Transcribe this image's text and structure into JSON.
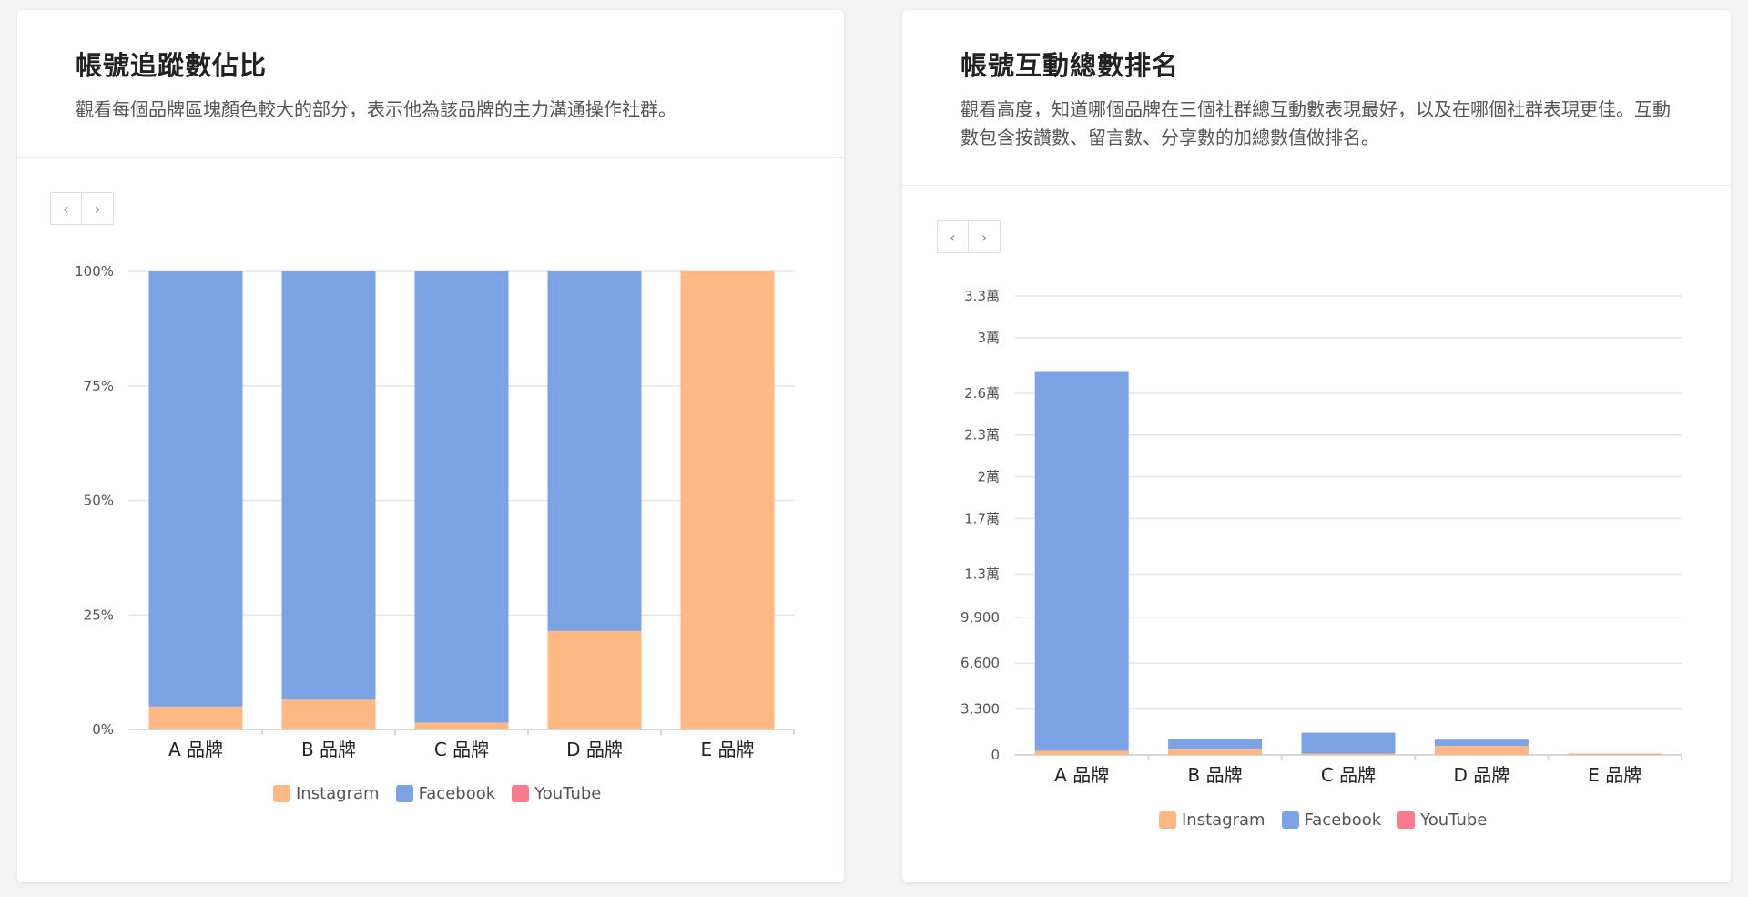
{
  "colors": {
    "instagram": "#ffb884",
    "facebook": "#7ba3e6",
    "youtube": "#fb7a8c",
    "grid": "#e6e6e6",
    "axis": "#d8d8d8"
  },
  "pager": {
    "prev_icon": "‹",
    "next_icon": "›"
  },
  "left_card": {
    "title": "帳號追蹤數佔比",
    "description": "觀看每個品牌區塊顏色較大的部分，表示他為該品牌的主力溝通操作社群。"
  },
  "right_card": {
    "title": "帳號互動總數排名",
    "description": "觀看高度，知道哪個品牌在三個社群總互動數表現最好，以及在哪個社群表現更佳。互動數包含按讚數、留言數、分享數的加總數值做排名。"
  },
  "legend": [
    "Instagram",
    "Facebook",
    "YouTube"
  ],
  "chart_data": [
    {
      "type": "bar",
      "stacked": true,
      "normalized": true,
      "categories": [
        "A 品牌",
        "B 品牌",
        "C 品牌",
        "D 品牌",
        "E 品牌"
      ],
      "series": [
        {
          "name": "Instagram",
          "values": [
            5,
            6.5,
            1.5,
            21.5,
            100
          ]
        },
        {
          "name": "Facebook",
          "values": [
            95,
            93.5,
            98.5,
            78.5,
            0
          ]
        },
        {
          "name": "YouTube",
          "values": [
            0,
            0,
            0,
            0,
            0
          ]
        }
      ],
      "ylim": [
        0,
        100
      ],
      "yticks": [
        0,
        25,
        50,
        75,
        100
      ],
      "ytick_labels": [
        "0%",
        "25%",
        "50%",
        "75%",
        "100%"
      ],
      "grid": true,
      "legend_position": "bottom"
    },
    {
      "type": "bar",
      "stacked": true,
      "categories": [
        "A 品牌",
        "B 品牌",
        "C 品牌",
        "D 品牌",
        "E 品牌"
      ],
      "series": [
        {
          "name": "Instagram",
          "values": [
            300,
            450,
            100,
            650,
            100
          ]
        },
        {
          "name": "Facebook",
          "values": [
            27300,
            680,
            1500,
            450,
            0
          ]
        },
        {
          "name": "YouTube",
          "values": [
            0,
            0,
            0,
            0,
            0
          ]
        }
      ],
      "ylim": [
        0,
        33000
      ],
      "yticks": [
        0,
        3300,
        6600,
        9900,
        13000,
        17000,
        20000,
        23000,
        26000,
        30000,
        33000
      ],
      "ytick_labels": [
        "0",
        "3,300",
        "6,600",
        "9,900",
        "1.3萬",
        "1.7萬",
        "2萬",
        "2.3萬",
        "2.6萬",
        "3萬",
        "3.3萬"
      ],
      "grid": true,
      "legend_position": "bottom"
    }
  ]
}
